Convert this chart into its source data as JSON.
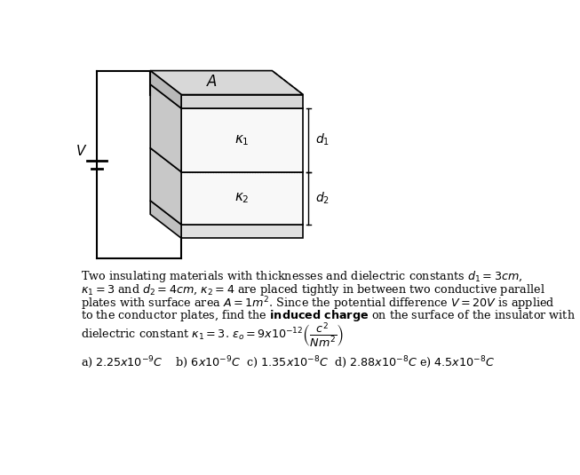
{
  "bg_color": "#ffffff",
  "fig_width": 6.53,
  "fig_height": 5.35,
  "line_color": "#000000",
  "plate_color": "#d0d0d0",
  "top_face_color": "#d8d8d8",
  "dielectric_color": "#f5f5f5",
  "side_strip_color": "#b8b8b8",
  "font_size_problem": 9.2,
  "font_size_answer": 9.2
}
